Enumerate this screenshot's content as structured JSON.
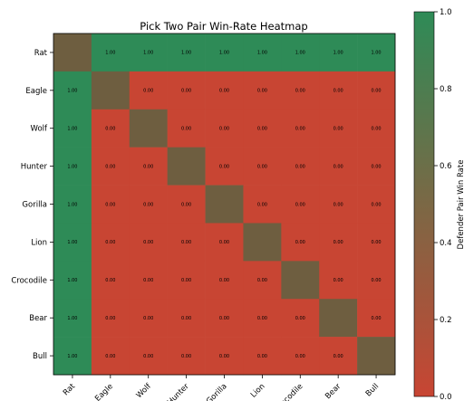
{
  "chart_data": {
    "type": "heatmap",
    "title": "Pick Two Pair Win-Rate Heatmap",
    "row_labels": [
      "Rat",
      "Eagle",
      "Wolf",
      "Hunter",
      "Gorilla",
      "Lion",
      "Crocodile",
      "Bear",
      "Bull"
    ],
    "col_labels": [
      "Rat",
      "Eagle",
      "Wolf",
      "Hunter",
      "Gorilla",
      "Lion",
      "Crocodile",
      "Bear",
      "Bull"
    ],
    "values": [
      [
        null,
        1.0,
        1.0,
        1.0,
        1.0,
        1.0,
        1.0,
        1.0,
        1.0
      ],
      [
        1.0,
        null,
        0.0,
        0.0,
        0.0,
        0.0,
        0.0,
        0.0,
        0.0
      ],
      [
        1.0,
        0.0,
        null,
        0.0,
        0.0,
        0.0,
        0.0,
        0.0,
        0.0
      ],
      [
        1.0,
        0.0,
        0.0,
        null,
        0.0,
        0.0,
        0.0,
        0.0,
        0.0
      ],
      [
        1.0,
        0.0,
        0.0,
        0.0,
        null,
        0.0,
        0.0,
        0.0,
        0.0
      ],
      [
        1.0,
        0.0,
        0.0,
        0.0,
        0.0,
        null,
        0.0,
        0.0,
        0.0
      ],
      [
        1.0,
        0.0,
        0.0,
        0.0,
        0.0,
        0.0,
        null,
        0.0,
        0.0
      ],
      [
        1.0,
        0.0,
        0.0,
        0.0,
        0.0,
        0.0,
        0.0,
        null,
        0.0
      ],
      [
        1.0,
        0.0,
        0.0,
        0.0,
        0.0,
        0.0,
        0.0,
        0.0,
        null
      ]
    ],
    "value_format": "0.00",
    "colorbar": {
      "label": "Defender Pair Win Rate",
      "range": [
        0.0,
        1.0
      ],
      "ticks": [
        "0.0",
        "0.2",
        "0.4",
        "0.6",
        "0.8",
        "1.0"
      ],
      "color_low": "#c84533",
      "color_high": "#2e8b57"
    },
    "diagonal_color": "#6e5e40",
    "grid": false
  }
}
